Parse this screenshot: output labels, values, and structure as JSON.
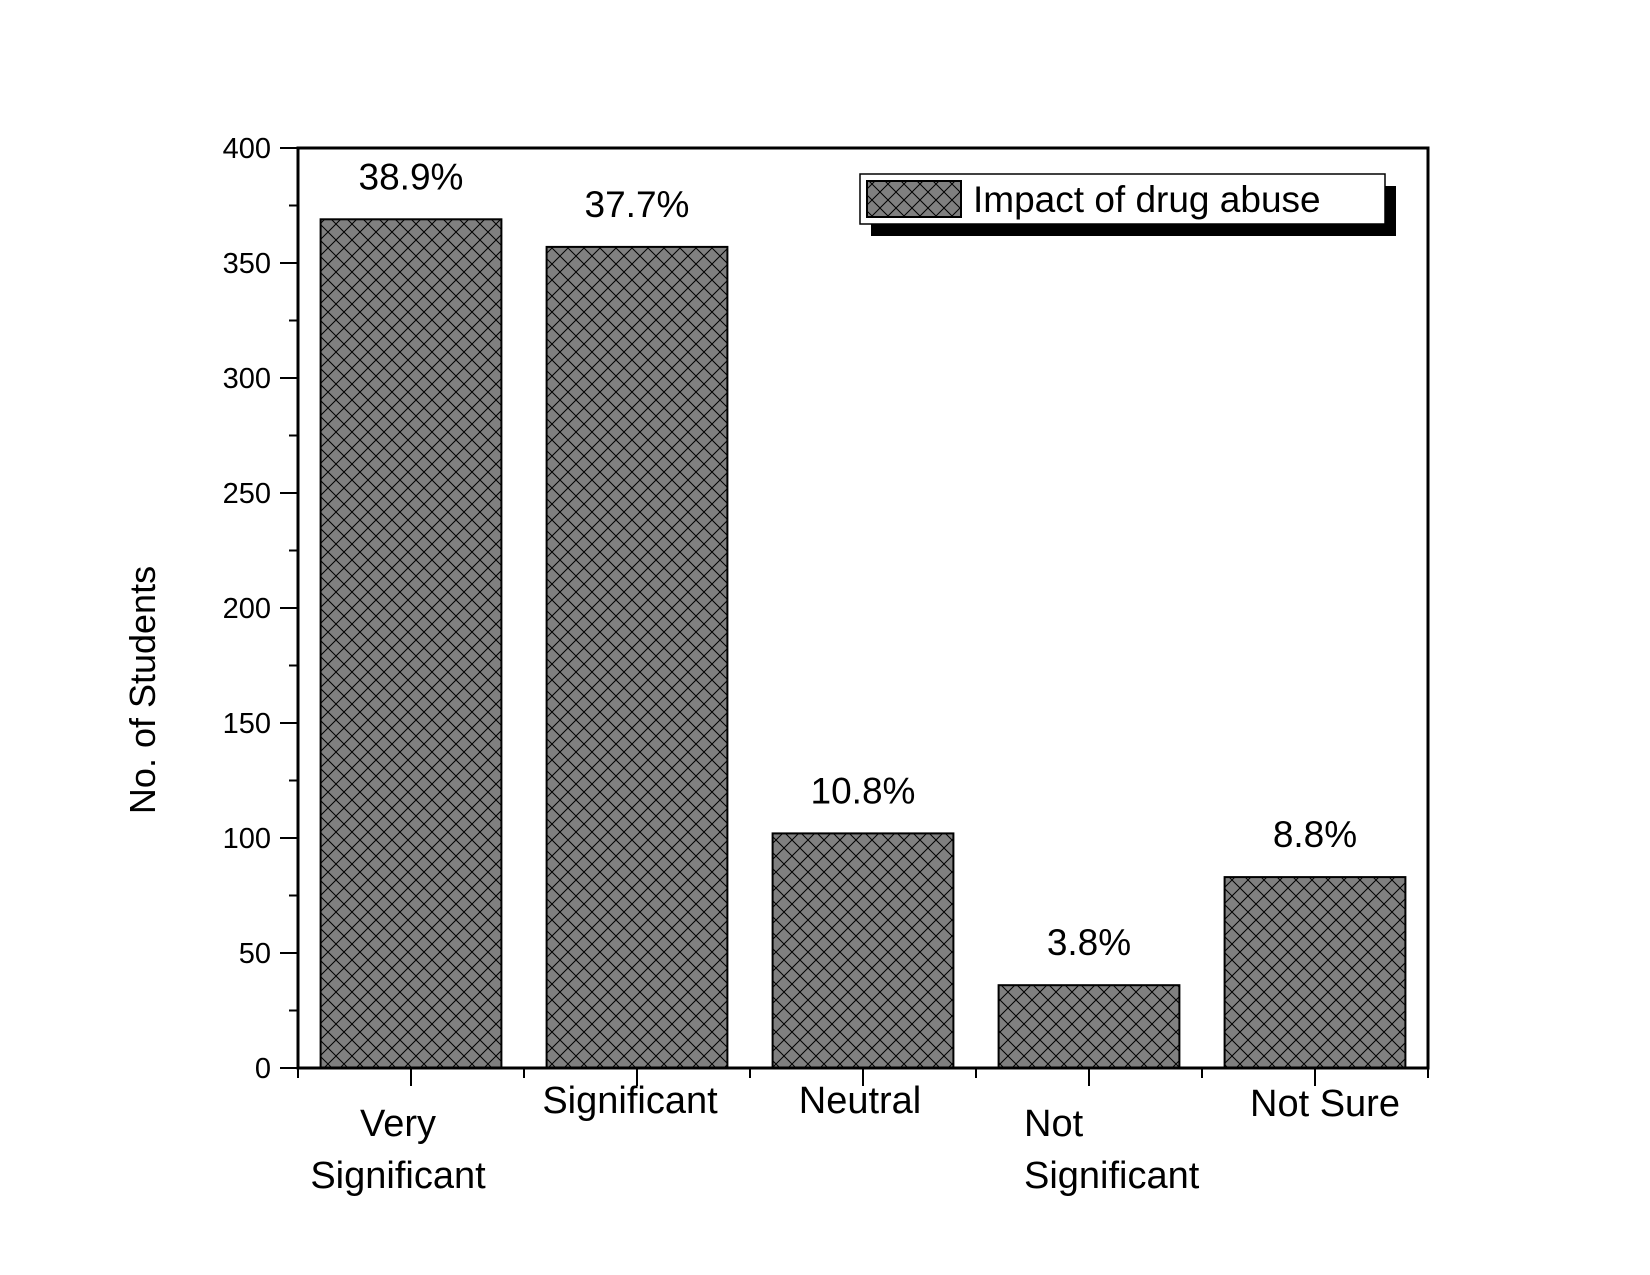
{
  "colors": {
    "bar_fill": "#808080",
    "hatch": "#000000",
    "axis": "#000000",
    "background": "#ffffff"
  },
  "chart_data": {
    "type": "bar",
    "categories": [
      [
        "Very",
        "Significant"
      ],
      [
        "Significant"
      ],
      [
        "Neutral"
      ],
      [
        "Not",
        "Significant"
      ],
      [
        "Not Sure"
      ]
    ],
    "values": [
      369,
      357,
      102,
      36,
      83
    ],
    "data_labels": [
      "38.9%",
      "37.7%",
      "10.8%",
      "3.8%",
      "8.8%"
    ],
    "series": [
      {
        "name": "Impact of drug abuse",
        "values": [
          369,
          357,
          102,
          36,
          83
        ]
      }
    ],
    "title": "",
    "xlabel": "",
    "ylabel": "No. of Students",
    "ylim": [
      0,
      400
    ],
    "yticks": [
      0,
      50,
      100,
      150,
      200,
      250,
      300,
      350,
      400
    ],
    "grid": false,
    "legend_position": "top-right",
    "bar_pattern": "crosshatch"
  }
}
